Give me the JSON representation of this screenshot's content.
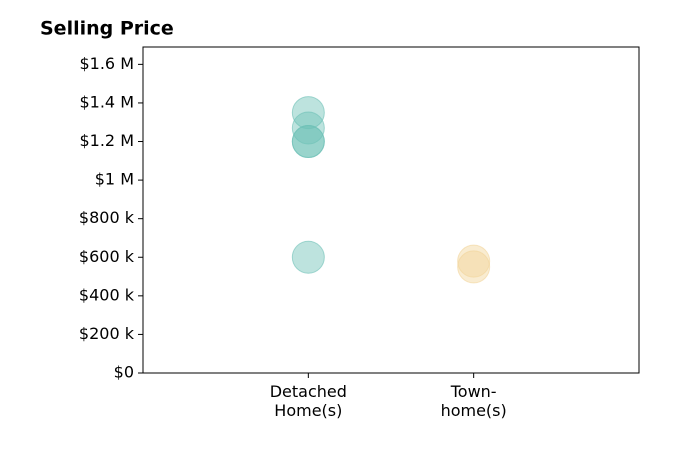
{
  "chart_data": {
    "type": "strip",
    "title": "Selling Price",
    "categories": [
      "Detached\nHome(s)",
      "Town-\nhome(s)"
    ],
    "values": [
      [
        1350000,
        1270000,
        1200000,
        1200000,
        600000
      ],
      [
        580000,
        550000
      ]
    ],
    "colors": [
      "#6cc0b5",
      "#f2d49a"
    ],
    "xlim": [
      -1,
      2
    ],
    "ylim": [
      0,
      1690000
    ],
    "yticks": [
      {
        "value": 0,
        "label": "$0"
      },
      {
        "value": 200000,
        "label": "$200 k"
      },
      {
        "value": 400000,
        "label": "$400 k"
      },
      {
        "value": 600000,
        "label": "$600 k"
      },
      {
        "value": 800000,
        "label": "$800 k"
      },
      {
        "value": 1000000,
        "label": "$1 M"
      },
      {
        "value": 1200000,
        "label": "$1.2 M"
      },
      {
        "value": 1400000,
        "label": "$1.4 M"
      },
      {
        "value": 1600000,
        "label": "$1.6 M"
      }
    ]
  }
}
